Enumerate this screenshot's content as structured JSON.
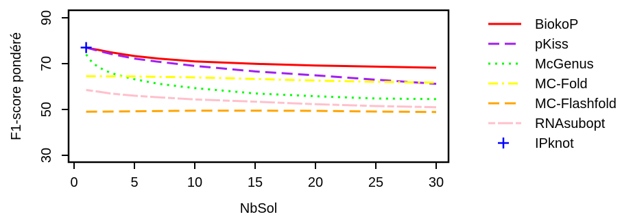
{
  "chart_data": {
    "type": "line",
    "title": "",
    "xlabel": "NbSol",
    "ylabel": "F1-score pondéré",
    "xlim": [
      0,
      30
    ],
    "ylim": [
      30,
      90
    ],
    "x_ticks": [
      0,
      5,
      10,
      15,
      20,
      25,
      30
    ],
    "y_ticks": [
      30,
      50,
      70,
      90
    ],
    "grid": false,
    "legend_position": "right",
    "series": [
      {
        "name": "BiokoP",
        "color": "#ff0000",
        "style": "solid",
        "x": [
          1,
          2,
          3,
          5,
          7,
          10,
          15,
          20,
          25,
          30
        ],
        "y": [
          77,
          76.0,
          75.0,
          73.3,
          72.2,
          71.0,
          69.9,
          69.2,
          68.7,
          68.2
        ]
      },
      {
        "name": "pKiss",
        "color": "#a020f0",
        "style": "longdash",
        "x": [
          1,
          2,
          3,
          5,
          7,
          10,
          15,
          20,
          25,
          30
        ],
        "y": [
          77,
          75.6,
          74.3,
          72.2,
          70.8,
          69.0,
          66.6,
          64.9,
          63.0,
          61.2
        ]
      },
      {
        "name": "McGenus",
        "color": "#00ff00",
        "style": "dotted",
        "x": [
          1,
          1.5,
          2,
          3,
          4,
          5,
          7,
          10,
          15,
          20,
          25,
          30
        ],
        "y": [
          74,
          70.5,
          68.5,
          66.0,
          64.5,
          63.2,
          61.2,
          59.3,
          57.0,
          55.8,
          54.8,
          54.5
        ]
      },
      {
        "name": "MC-Fold",
        "color": "#ffff00",
        "style": "dashdot",
        "x": [
          1,
          5,
          10,
          15,
          20,
          25,
          30
        ],
        "y": [
          64.5,
          64.4,
          64.0,
          63.3,
          62.6,
          62.1,
          61.7
        ]
      },
      {
        "name": "MC-Flashfold",
        "color": "#ffa500",
        "style": "longdash",
        "x": [
          1,
          5,
          10,
          15,
          20,
          25,
          30
        ],
        "y": [
          49,
          49.2,
          49.5,
          49.5,
          49.4,
          49.1,
          48.9
        ]
      },
      {
        "name": "RNAsubopt",
        "color": "#ffc0cb",
        "style": "twodash",
        "x": [
          1,
          2,
          3,
          5,
          7,
          10,
          15,
          20,
          25,
          30
        ],
        "y": [
          58.5,
          57.8,
          57.0,
          56.0,
          55.3,
          54.4,
          53.4,
          52.3,
          51.5,
          51.0
        ]
      },
      {
        "name": "IPknot",
        "color": "#0000ff",
        "style": "point-plus",
        "x": [
          1
        ],
        "y": [
          77
        ]
      }
    ]
  }
}
